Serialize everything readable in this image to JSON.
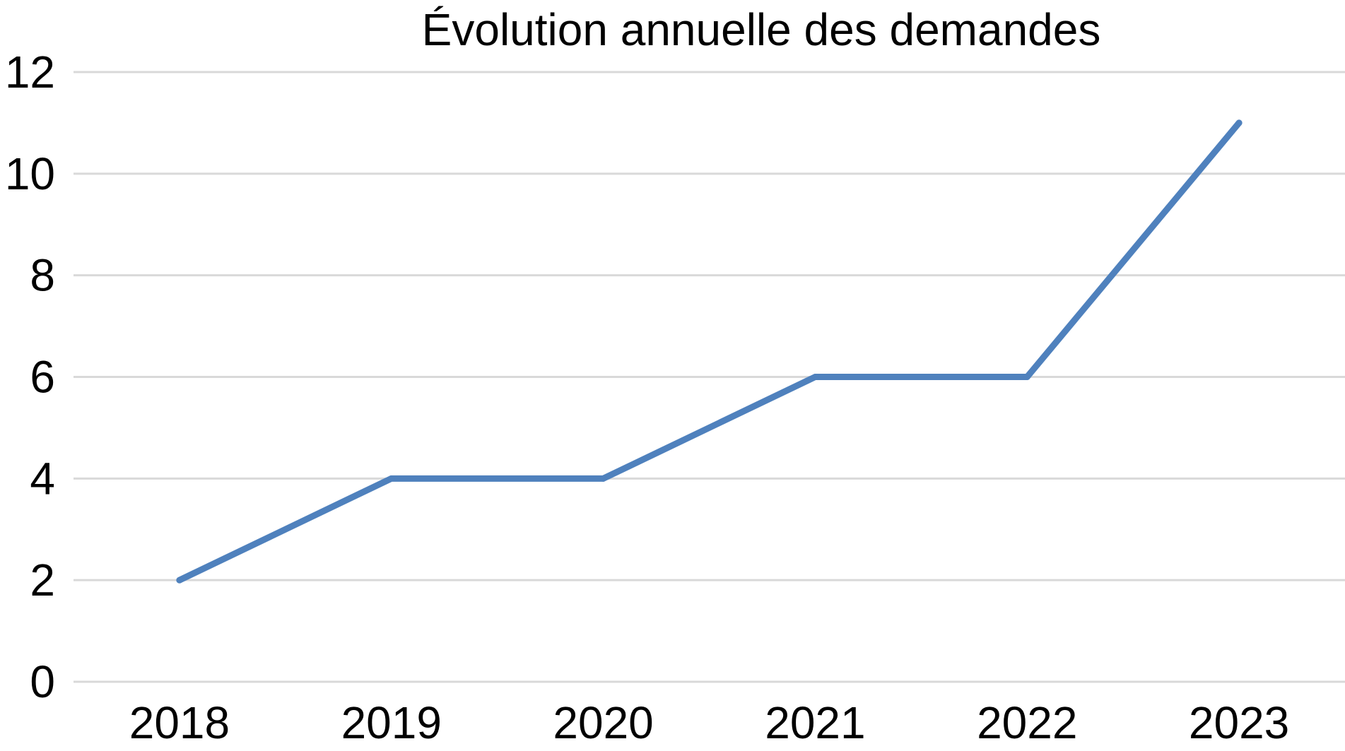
{
  "chart_data": {
    "type": "line",
    "title": "Évolution annuelle des demandes",
    "xlabel": "",
    "ylabel": "",
    "categories": [
      "2018",
      "2019",
      "2020",
      "2021",
      "2022",
      "2023"
    ],
    "series": [
      {
        "values": [
          2,
          4,
          4,
          6,
          6,
          11
        ],
        "color": "#4f81bd"
      }
    ],
    "ylim": [
      0,
      12
    ],
    "yticks": [
      "0",
      "2",
      "4",
      "6",
      "8",
      "10",
      "12"
    ],
    "grid": true,
    "gridColor": "#d9d9d9",
    "legend": "none"
  }
}
